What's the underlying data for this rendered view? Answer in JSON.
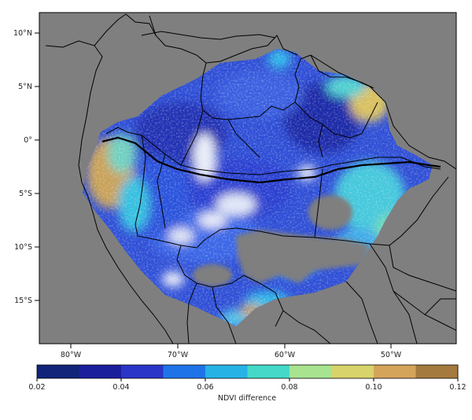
{
  "map": {
    "lat_ticks": [
      "10°N",
      "5°N",
      "0°",
      "5°S",
      "10°S",
      "15°S"
    ],
    "lon_ticks": [
      "80°W",
      "70°W",
      "60°W",
      "50°W"
    ],
    "background_color": "#7f7f7f",
    "border_color": "#000000"
  },
  "colorbar": {
    "label": "NDVI difference",
    "tick_labels": [
      "0.02",
      "0.04",
      "0.06",
      "0.08",
      "0.10",
      "0.12"
    ],
    "colors": [
      "#12247a",
      "#1c1f9c",
      "#2b35c7",
      "#1f73e8",
      "#27b2e6",
      "#45d8c8",
      "#a8e390",
      "#d8d36a",
      "#d4a45a",
      "#a57a3e"
    ]
  }
}
